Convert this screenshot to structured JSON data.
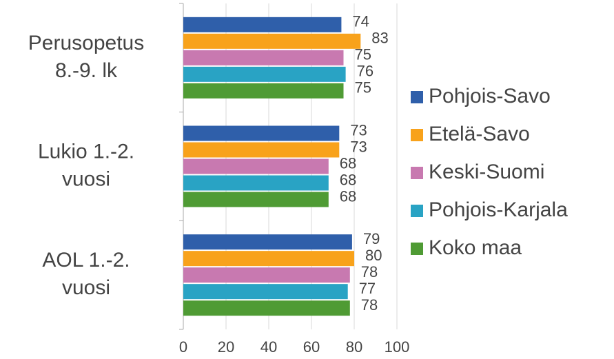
{
  "chart_data": {
    "type": "hbar",
    "categories": [
      [
        "Perusopetus",
        "8.-9. lk"
      ],
      [
        "Lukio 1.-2.",
        "vuosi"
      ],
      [
        "AOL 1.-2.",
        "vuosi"
      ]
    ],
    "series": [
      {
        "name": "Pohjois-Savo",
        "color": "#2f5faa",
        "values": [
          74,
          73,
          79
        ]
      },
      {
        "name": "Etelä-Savo",
        "color": "#f8a21b",
        "values": [
          83,
          73,
          80
        ]
      },
      {
        "name": "Keski-Suomi",
        "color": "#c879b0",
        "values": [
          75,
          68,
          78
        ]
      },
      {
        "name": "Pohjois-Karjala",
        "color": "#29a3c4",
        "values": [
          76,
          68,
          77
        ]
      },
      {
        "name": "Koko maa",
        "color": "#4f9b34",
        "values": [
          75,
          68,
          78
        ]
      }
    ],
    "xlim": [
      0,
      100
    ],
    "xticks": [
      0,
      20,
      40,
      60,
      80,
      100
    ],
    "grid": true,
    "legend": "right"
  }
}
